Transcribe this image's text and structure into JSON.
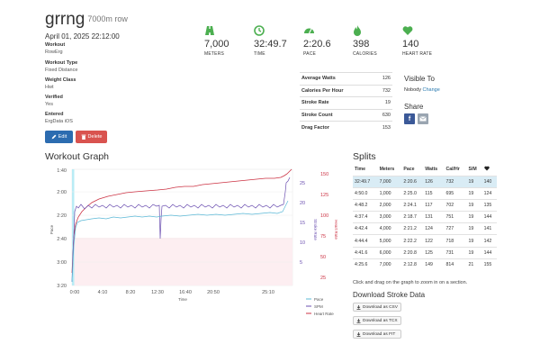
{
  "workout": {
    "title": "grrng",
    "subtitle": "7000m row",
    "datetime": "April 01, 2025 22:12:00",
    "fields": [
      {
        "label": "Workout",
        "value": "RowErg"
      },
      {
        "label": "Workout Type",
        "value": "Fixed Distance"
      },
      {
        "label": "Weight Class",
        "value": "Hwt"
      },
      {
        "label": "Verified",
        "value": "Yes"
      },
      {
        "label": "Entered",
        "value": "ErgData iOS"
      }
    ],
    "edit_label": "Edit",
    "delete_label": "Delete"
  },
  "stats": [
    {
      "value": "7,000",
      "unit": "METERS",
      "icon": "road-icon"
    },
    {
      "value": "32:49.7",
      "unit": "TIME",
      "icon": "clock-icon"
    },
    {
      "value": "2:20.6",
      "unit": "PACE",
      "icon": "speedometer-icon"
    },
    {
      "value": "398",
      "unit": "CALORIES",
      "icon": "flame-icon"
    },
    {
      "value": "140",
      "unit": "HEART RATE",
      "icon": "heart-icon"
    }
  ],
  "summary": [
    {
      "label": "Average Watts",
      "value": "126"
    },
    {
      "label": "Calories Per Hour",
      "value": "732"
    },
    {
      "label": "Stroke Rate",
      "value": "19"
    },
    {
      "label": "Stroke Count",
      "value": "630"
    },
    {
      "label": "Drag Factor",
      "value": "153"
    }
  ],
  "visibility": {
    "heading": "Visible To",
    "value": "Nobody",
    "change_label": "Change",
    "share_heading": "Share"
  },
  "graph": {
    "heading": "Workout Graph",
    "x_ticks": [
      "0:00",
      "4:10",
      "8:20",
      "12:30",
      "16:40",
      "20:50",
      "25:10"
    ],
    "x_label": "Time",
    "pace_ticks": [
      "1:40",
      "2:00",
      "2:20",
      "2:40",
      "3:00",
      "3:20"
    ],
    "pace_label": "Pace",
    "spm_ticks": [
      "25",
      "20",
      "15",
      "10",
      "5"
    ],
    "spm_label": "Stroke Rate",
    "hr_ticks": [
      "150",
      "125",
      "100",
      "75",
      "50",
      "25"
    ],
    "hr_label": "Heart Rate",
    "legend": [
      "Pace",
      "SPM",
      "Heart Rate"
    ],
    "colors": {
      "pace": "#5bb8d6",
      "spm": "#6b4fb0",
      "hr": "#cc3344"
    }
  },
  "splits": {
    "heading": "Splits",
    "columns": [
      "Time",
      "Meters",
      "Pace",
      "Watts",
      "Cal/Hr",
      "S/M",
      "heart-icon"
    ],
    "rows": [
      [
        "32:49.7",
        "7,000",
        "2:20.6",
        "126",
        "732",
        "19",
        "140"
      ],
      [
        "4:50.0",
        "1,000",
        "2:25.0",
        "115",
        "695",
        "19",
        "124"
      ],
      [
        "4:48.2",
        "2,000",
        "2:24.1",
        "117",
        "702",
        "19",
        "135"
      ],
      [
        "4:37.4",
        "3,000",
        "2:18.7",
        "131",
        "751",
        "19",
        "144"
      ],
      [
        "4:42.4",
        "4,000",
        "2:21.2",
        "124",
        "727",
        "19",
        "141"
      ],
      [
        "4:44.4",
        "5,000",
        "2:22.2",
        "122",
        "718",
        "19",
        "142"
      ],
      [
        "4:41.6",
        "6,000",
        "2:20.8",
        "125",
        "731",
        "19",
        "144"
      ],
      [
        "4:25.6",
        "7,000",
        "2:12.8",
        "149",
        "814",
        "21",
        "155"
      ]
    ],
    "hint": "Click and drag on the graph to zoom in on a section."
  },
  "download": {
    "heading": "Download Stroke Data",
    "buttons": [
      "Download as CSV",
      "Download as TCX",
      "Download as FIT"
    ]
  }
}
